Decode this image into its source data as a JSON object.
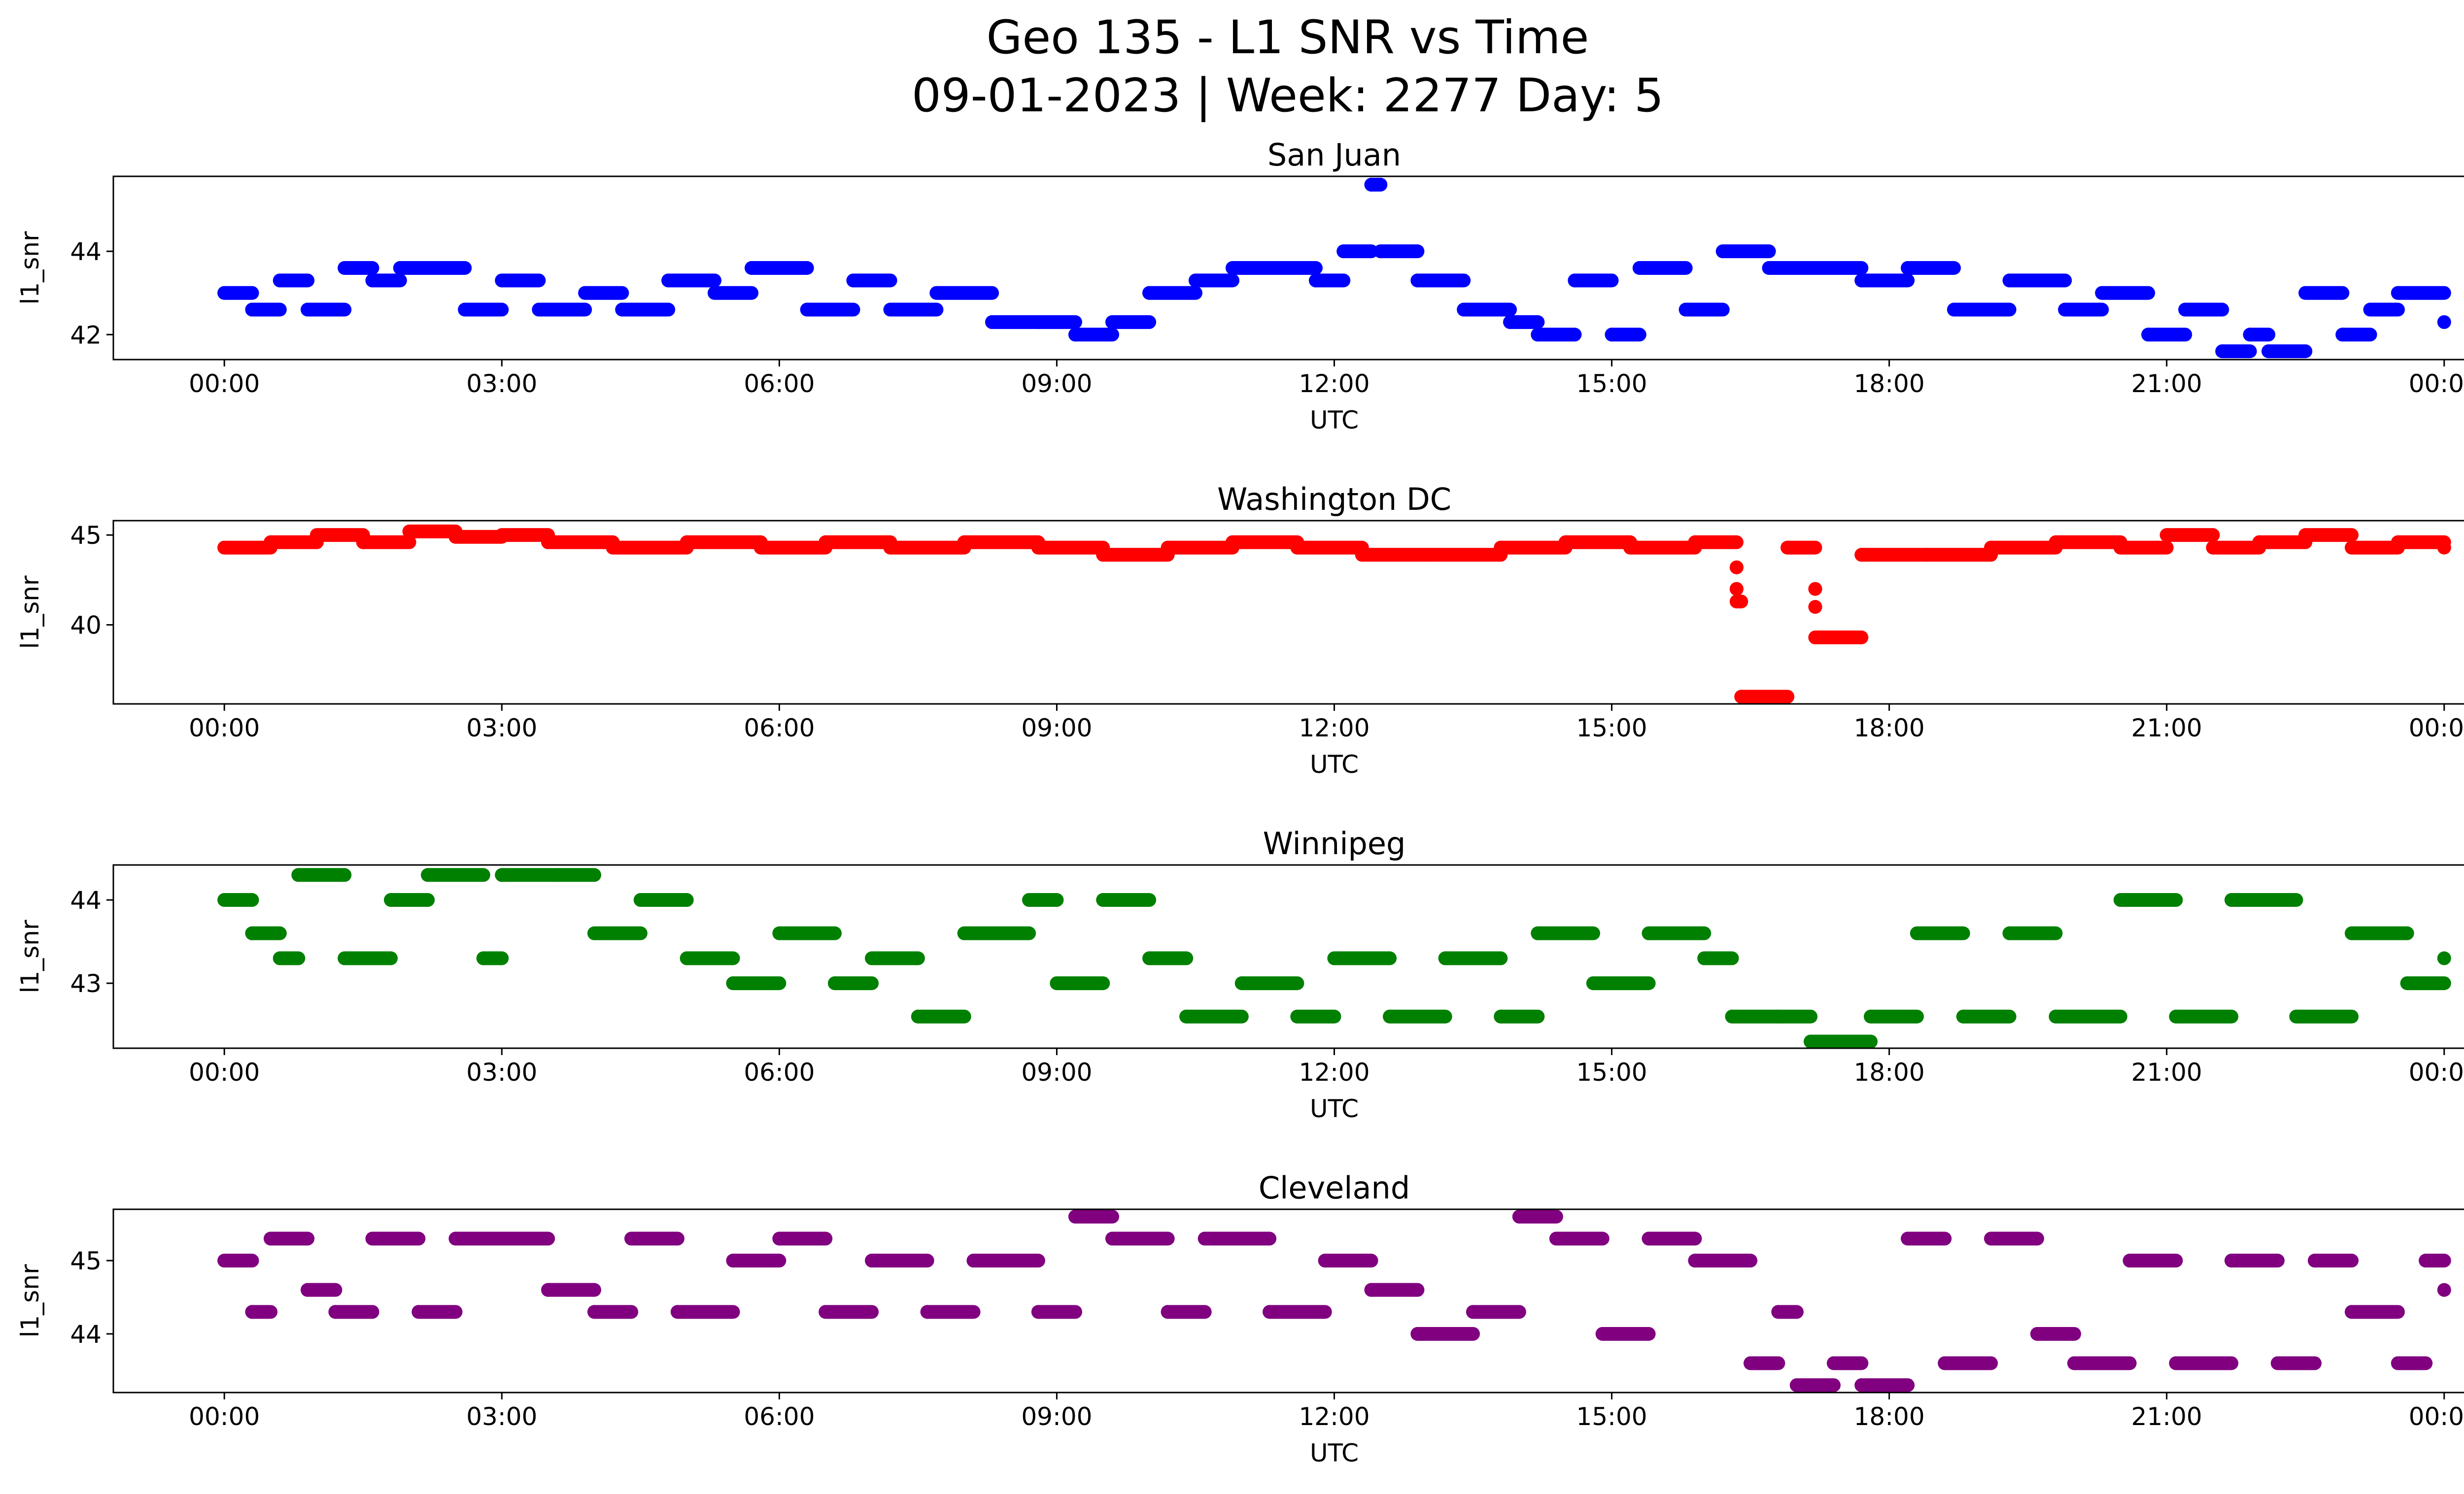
{
  "title": {
    "line1": "Geo 135 - L1 SNR vs Time",
    "line2": "09-01-2023 | Week: 2277 Day: 5"
  },
  "chart_data": [
    {
      "type": "scatter",
      "title": "San Juan",
      "xlabel": "UTC",
      "ylabel": "l1_snr",
      "color": "#0000ff",
      "x_tick_labels": [
        "00:00",
        "03:00",
        "06:00",
        "09:00",
        "12:00",
        "15:00",
        "18:00",
        "21:00",
        "00:00"
      ],
      "xlim_hours": [
        -1.2,
        25.2
      ],
      "y_ticks": [
        42,
        44
      ],
      "ylim": [
        41.4,
        45.8
      ],
      "series": [
        {
          "values": [
            {
              "x": 0.0,
              "y": 43.0
            },
            {
              "x": 0.3,
              "y": 42.6
            },
            {
              "x": 0.6,
              "y": 43.3
            },
            {
              "x": 0.9,
              "y": 42.6
            },
            {
              "x": 1.3,
              "y": 43.6
            },
            {
              "x": 1.6,
              "y": 43.3
            },
            {
              "x": 1.9,
              "y": 43.6
            },
            {
              "x": 2.2,
              "y": 43.6
            },
            {
              "x": 2.6,
              "y": 42.6
            },
            {
              "x": 3.0,
              "y": 43.3
            },
            {
              "x": 3.4,
              "y": 42.6
            },
            {
              "x": 3.9,
              "y": 43.0
            },
            {
              "x": 4.3,
              "y": 42.6
            },
            {
              "x": 4.8,
              "y": 43.3
            },
            {
              "x": 5.3,
              "y": 43.0
            },
            {
              "x": 5.7,
              "y": 43.6
            },
            {
              "x": 6.0,
              "y": 43.6
            },
            {
              "x": 6.3,
              "y": 42.6
            },
            {
              "x": 6.8,
              "y": 43.3
            },
            {
              "x": 7.2,
              "y": 42.6
            },
            {
              "x": 7.7,
              "y": 43.0
            },
            {
              "x": 8.3,
              "y": 42.3
            },
            {
              "x": 8.8,
              "y": 42.3
            },
            {
              "x": 9.2,
              "y": 42.0
            },
            {
              "x": 9.6,
              "y": 42.3
            },
            {
              "x": 10.0,
              "y": 43.0
            },
            {
              "x": 10.5,
              "y": 43.3
            },
            {
              "x": 10.9,
              "y": 43.6
            },
            {
              "x": 11.4,
              "y": 43.6
            },
            {
              "x": 11.8,
              "y": 43.3
            },
            {
              "x": 12.1,
              "y": 44.0
            },
            {
              "x": 12.4,
              "y": 45.6
            },
            {
              "x": 12.5,
              "y": 44.0
            },
            {
              "x": 12.9,
              "y": 43.3
            },
            {
              "x": 13.4,
              "y": 42.6
            },
            {
              "x": 13.9,
              "y": 42.3
            },
            {
              "x": 14.2,
              "y": 42.0
            },
            {
              "x": 14.6,
              "y": 43.3
            },
            {
              "x": 15.0,
              "y": 42.0
            },
            {
              "x": 15.3,
              "y": 43.6
            },
            {
              "x": 15.8,
              "y": 42.6
            },
            {
              "x": 16.2,
              "y": 44.0
            },
            {
              "x": 16.7,
              "y": 43.6
            },
            {
              "x": 17.2,
              "y": 43.6
            },
            {
              "x": 17.7,
              "y": 43.3
            },
            {
              "x": 18.2,
              "y": 43.6
            },
            {
              "x": 18.7,
              "y": 42.6
            },
            {
              "x": 19.3,
              "y": 43.3
            },
            {
              "x": 19.9,
              "y": 42.6
            },
            {
              "x": 20.3,
              "y": 43.0
            },
            {
              "x": 20.8,
              "y": 42.0
            },
            {
              "x": 21.2,
              "y": 42.6
            },
            {
              "x": 21.6,
              "y": 41.6
            },
            {
              "x": 21.9,
              "y": 42.0
            },
            {
              "x": 22.1,
              "y": 41.6
            },
            {
              "x": 22.5,
              "y": 43.0
            },
            {
              "x": 22.9,
              "y": 42.0
            },
            {
              "x": 23.2,
              "y": 42.6
            },
            {
              "x": 23.5,
              "y": 43.0
            },
            {
              "x": 24.0,
              "y": 42.3
            }
          ]
        }
      ]
    },
    {
      "type": "scatter",
      "title": "Washington DC",
      "xlabel": "UTC",
      "ylabel": "l1_snr",
      "color": "#ff0000",
      "x_tick_labels": [
        "00:00",
        "03:00",
        "06:00",
        "09:00",
        "12:00",
        "15:00",
        "18:00",
        "21:00",
        "00:00"
      ],
      "xlim_hours": [
        -1.2,
        25.2
      ],
      "y_ticks": [
        40,
        45
      ],
      "ylim": [
        35.6,
        45.8
      ],
      "series": [
        {
          "values": [
            {
              "x": 0.0,
              "y": 44.3
            },
            {
              "x": 0.5,
              "y": 44.6
            },
            {
              "x": 1.0,
              "y": 45.0
            },
            {
              "x": 1.5,
              "y": 44.6
            },
            {
              "x": 2.0,
              "y": 45.2
            },
            {
              "x": 2.5,
              "y": 44.9
            },
            {
              "x": 3.0,
              "y": 45.0
            },
            {
              "x": 3.5,
              "y": 44.6
            },
            {
              "x": 4.2,
              "y": 44.3
            },
            {
              "x": 5.0,
              "y": 44.6
            },
            {
              "x": 5.8,
              "y": 44.3
            },
            {
              "x": 6.5,
              "y": 44.6
            },
            {
              "x": 7.2,
              "y": 44.3
            },
            {
              "x": 8.0,
              "y": 44.6
            },
            {
              "x": 8.8,
              "y": 44.3
            },
            {
              "x": 9.5,
              "y": 43.9
            },
            {
              "x": 10.2,
              "y": 44.3
            },
            {
              "x": 10.9,
              "y": 44.6
            },
            {
              "x": 11.6,
              "y": 44.3
            },
            {
              "x": 12.3,
              "y": 43.9
            },
            {
              "x": 13.0,
              "y": 43.9
            },
            {
              "x": 13.8,
              "y": 44.3
            },
            {
              "x": 14.5,
              "y": 44.6
            },
            {
              "x": 15.2,
              "y": 44.3
            },
            {
              "x": 15.9,
              "y": 44.6
            },
            {
              "x": 16.35,
              "y": 43.2
            },
            {
              "x": 16.35,
              "y": 42.0
            },
            {
              "x": 16.35,
              "y": 41.3
            },
            {
              "x": 16.4,
              "y": 36.0
            },
            {
              "x": 16.9,
              "y": 44.3
            },
            {
              "x": 17.2,
              "y": 42.0
            },
            {
              "x": 17.2,
              "y": 41.0
            },
            {
              "x": 17.2,
              "y": 39.3
            },
            {
              "x": 17.7,
              "y": 43.9
            },
            {
              "x": 18.4,
              "y": 43.9
            },
            {
              "x": 19.1,
              "y": 44.3
            },
            {
              "x": 19.8,
              "y": 44.6
            },
            {
              "x": 20.5,
              "y": 44.3
            },
            {
              "x": 21.0,
              "y": 45.0
            },
            {
              "x": 21.5,
              "y": 44.3
            },
            {
              "x": 22.0,
              "y": 44.6
            },
            {
              "x": 22.5,
              "y": 45.0
            },
            {
              "x": 23.0,
              "y": 44.3
            },
            {
              "x": 23.5,
              "y": 44.6
            },
            {
              "x": 24.0,
              "y": 44.3
            }
          ]
        }
      ]
    },
    {
      "type": "scatter",
      "title": "Winnipeg",
      "xlabel": "UTC",
      "ylabel": "l1_snr",
      "color": "#008000",
      "x_tick_labels": [
        "00:00",
        "03:00",
        "06:00",
        "09:00",
        "12:00",
        "15:00",
        "18:00",
        "21:00",
        "00:00"
      ],
      "xlim_hours": [
        -1.2,
        25.2
      ],
      "y_ticks": [
        43,
        44
      ],
      "ylim": [
        42.22,
        44.42
      ],
      "series": [
        {
          "values": [
            {
              "x": 0.0,
              "y": 44.0
            },
            {
              "x": 0.3,
              "y": 43.6
            },
            {
              "x": 0.6,
              "y": 43.3
            },
            {
              "x": 0.8,
              "y": 44.3
            },
            {
              "x": 1.3,
              "y": 43.3
            },
            {
              "x": 1.8,
              "y": 44.0
            },
            {
              "x": 2.2,
              "y": 44.3
            },
            {
              "x": 2.8,
              "y": 43.3
            },
            {
              "x": 3.0,
              "y": 44.3
            },
            {
              "x": 3.6,
              "y": 44.3
            },
            {
              "x": 4.0,
              "y": 43.6
            },
            {
              "x": 4.5,
              "y": 44.0
            },
            {
              "x": 5.0,
              "y": 43.3
            },
            {
              "x": 5.5,
              "y": 43.0
            },
            {
              "x": 6.0,
              "y": 43.6
            },
            {
              "x": 6.6,
              "y": 43.0
            },
            {
              "x": 7.0,
              "y": 43.3
            },
            {
              "x": 7.5,
              "y": 42.6
            },
            {
              "x": 8.0,
              "y": 43.6
            },
            {
              "x": 8.7,
              "y": 44.0
            },
            {
              "x": 9.0,
              "y": 43.0
            },
            {
              "x": 9.5,
              "y": 44.0
            },
            {
              "x": 10.0,
              "y": 43.3
            },
            {
              "x": 10.4,
              "y": 42.6
            },
            {
              "x": 11.0,
              "y": 43.0
            },
            {
              "x": 11.6,
              "y": 42.6
            },
            {
              "x": 12.0,
              "y": 43.3
            },
            {
              "x": 12.6,
              "y": 42.6
            },
            {
              "x": 13.2,
              "y": 43.3
            },
            {
              "x": 13.8,
              "y": 42.6
            },
            {
              "x": 14.2,
              "y": 43.6
            },
            {
              "x": 14.8,
              "y": 43.0
            },
            {
              "x": 15.4,
              "y": 43.6
            },
            {
              "x": 16.0,
              "y": 43.3
            },
            {
              "x": 16.3,
              "y": 42.6
            },
            {
              "x": 16.8,
              "y": 42.6
            },
            {
              "x": 17.15,
              "y": 42.3
            },
            {
              "x": 17.3,
              "y": 42.3
            },
            {
              "x": 17.8,
              "y": 42.6
            },
            {
              "x": 18.3,
              "y": 43.6
            },
            {
              "x": 18.8,
              "y": 42.6
            },
            {
              "x": 19.3,
              "y": 43.6
            },
            {
              "x": 19.8,
              "y": 42.6
            },
            {
              "x": 20.5,
              "y": 44.0
            },
            {
              "x": 21.1,
              "y": 42.6
            },
            {
              "x": 21.7,
              "y": 44.0
            },
            {
              "x": 22.2,
              "y": 44.0
            },
            {
              "x": 22.4,
              "y": 42.6
            },
            {
              "x": 23.0,
              "y": 43.6
            },
            {
              "x": 23.6,
              "y": 43.0
            },
            {
              "x": 24.0,
              "y": 43.3
            }
          ]
        }
      ]
    },
    {
      "type": "scatter",
      "title": "Cleveland",
      "xlabel": "UTC",
      "ylabel": "l1_snr",
      "color": "#800080",
      "x_tick_labels": [
        "00:00",
        "03:00",
        "06:00",
        "09:00",
        "12:00",
        "15:00",
        "18:00",
        "21:00",
        "00:00"
      ],
      "xlim_hours": [
        -1.2,
        25.2
      ],
      "y_ticks": [
        44,
        45
      ],
      "ylim": [
        43.2,
        45.7
      ],
      "series": [
        {
          "values": [
            {
              "x": 0.0,
              "y": 45.0
            },
            {
              "x": 0.3,
              "y": 44.3
            },
            {
              "x": 0.5,
              "y": 45.3
            },
            {
              "x": 0.9,
              "y": 44.6
            },
            {
              "x": 1.2,
              "y": 44.3
            },
            {
              "x": 1.6,
              "y": 45.3
            },
            {
              "x": 2.1,
              "y": 44.3
            },
            {
              "x": 2.5,
              "y": 45.3
            },
            {
              "x": 3.0,
              "y": 45.3
            },
            {
              "x": 3.5,
              "y": 44.6
            },
            {
              "x": 4.0,
              "y": 44.3
            },
            {
              "x": 4.4,
              "y": 45.3
            },
            {
              "x": 4.9,
              "y": 44.3
            },
            {
              "x": 5.5,
              "y": 45.0
            },
            {
              "x": 6.0,
              "y": 45.3
            },
            {
              "x": 6.5,
              "y": 44.3
            },
            {
              "x": 7.0,
              "y": 45.0
            },
            {
              "x": 7.6,
              "y": 44.3
            },
            {
              "x": 8.1,
              "y": 45.0
            },
            {
              "x": 8.8,
              "y": 44.3
            },
            {
              "x": 9.2,
              "y": 45.6
            },
            {
              "x": 9.6,
              "y": 45.3
            },
            {
              "x": 10.2,
              "y": 44.3
            },
            {
              "x": 10.6,
              "y": 45.3
            },
            {
              "x": 11.3,
              "y": 44.3
            },
            {
              "x": 11.9,
              "y": 45.0
            },
            {
              "x": 12.4,
              "y": 44.6
            },
            {
              "x": 12.9,
              "y": 44.0
            },
            {
              "x": 13.5,
              "y": 44.3
            },
            {
              "x": 14.0,
              "y": 45.6
            },
            {
              "x": 14.4,
              "y": 45.3
            },
            {
              "x": 14.9,
              "y": 44.0
            },
            {
              "x": 15.4,
              "y": 45.3
            },
            {
              "x": 15.9,
              "y": 45.0
            },
            {
              "x": 16.5,
              "y": 43.6
            },
            {
              "x": 16.8,
              "y": 44.3
            },
            {
              "x": 17.0,
              "y": 43.3
            },
            {
              "x": 17.4,
              "y": 43.6
            },
            {
              "x": 17.7,
              "y": 43.3
            },
            {
              "x": 18.2,
              "y": 45.3
            },
            {
              "x": 18.6,
              "y": 43.6
            },
            {
              "x": 19.1,
              "y": 45.3
            },
            {
              "x": 19.6,
              "y": 44.0
            },
            {
              "x": 20.0,
              "y": 43.6
            },
            {
              "x": 20.6,
              "y": 45.0
            },
            {
              "x": 21.1,
              "y": 43.6
            },
            {
              "x": 21.7,
              "y": 45.0
            },
            {
              "x": 22.2,
              "y": 43.6
            },
            {
              "x": 22.6,
              "y": 45.0
            },
            {
              "x": 23.0,
              "y": 44.3
            },
            {
              "x": 23.5,
              "y": 43.6
            },
            {
              "x": 23.8,
              "y": 45.0
            },
            {
              "x": 24.0,
              "y": 44.6
            }
          ]
        }
      ]
    }
  ]
}
